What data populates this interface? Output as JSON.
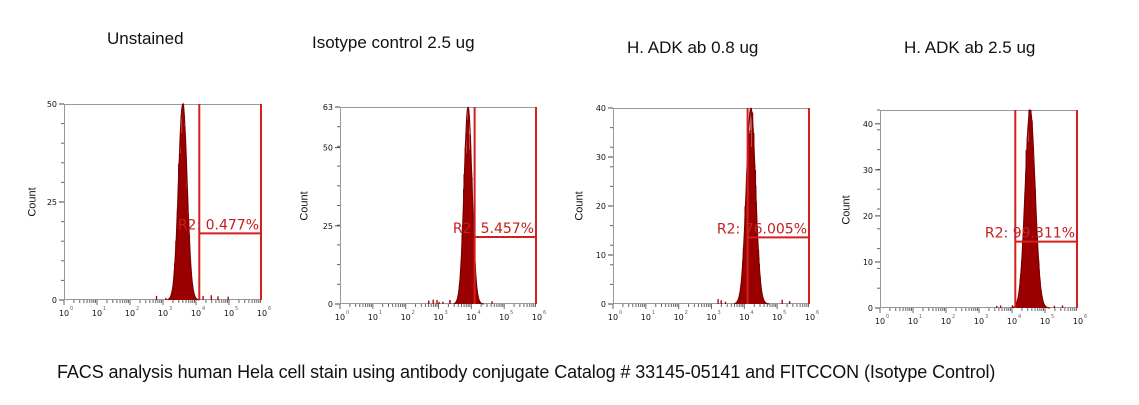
{
  "titles": [
    "Unstained",
    "Isotype control 2.5 ug",
    "H. ADK ab 0.8 ug",
    "H. ADK ab 2.5 ug"
  ],
  "caption": "FACS analysis human Hela cell stain using antibody conjugate Catalog # 33145-05141 and FITCCON (Isotype Control)",
  "colors": {
    "histogram": "#9b0000",
    "gate": "#d41f1f",
    "axis": "#999999"
  },
  "chart_data": [
    {
      "type": "histogram",
      "title": "Unstained",
      "xlabel": "",
      "ylabel": "Count",
      "xscale": "log",
      "xlim": [
        1,
        1000000
      ],
      "xticks": [
        "10^0",
        "10^1",
        "10^2",
        "10^3",
        "10^4",
        "10^5",
        "10^6"
      ],
      "ylim": [
        0,
        50
      ],
      "yticks": [
        0,
        25,
        50
      ],
      "peak": {
        "x_log10": 3.6,
        "count": 50,
        "sigma_log10": 0.13
      },
      "gate": {
        "name": "R2",
        "x_start_log10": 4.1,
        "x_end_log10": 6.0,
        "percent": "0.477%"
      },
      "annotation": "R2: 0.477%"
    },
    {
      "type": "histogram",
      "title": "Isotype control 2.5 ug",
      "xlabel": "",
      "ylabel": "Count",
      "xscale": "log",
      "xlim": [
        1,
        1000000
      ],
      "xticks": [
        "10^0",
        "10^1",
        "10^2",
        "10^3",
        "10^4",
        "10^5",
        "10^6"
      ],
      "ylim": [
        0,
        63
      ],
      "yticks": [
        0,
        25,
        50,
        63
      ],
      "peak": {
        "x_log10": 3.9,
        "count": 63,
        "sigma_log10": 0.12
      },
      "gate": {
        "name": "R2",
        "x_start_log10": 4.1,
        "x_end_log10": 6.0,
        "percent": "5.457%"
      },
      "annotation": "R2: 5.457%"
    },
    {
      "type": "histogram",
      "title": "H. ADK ab 0.8 ug",
      "xlabel": "",
      "ylabel": "Count",
      "xscale": "log",
      "xlim": [
        1,
        1000000
      ],
      "xticks": [
        "10^0",
        "10^1",
        "10^2",
        "10^3",
        "10^4",
        "10^5",
        "10^6"
      ],
      "ylim": [
        0,
        40
      ],
      "yticks": [
        0,
        10,
        20,
        30,
        40
      ],
      "peak": {
        "x_log10": 4.2,
        "count": 40,
        "sigma_log10": 0.14
      },
      "gate": {
        "name": "R2",
        "x_start_log10": 4.1,
        "x_end_log10": 6.0,
        "percent": "76.005%"
      },
      "annotation": "R2: 76.005%"
    },
    {
      "type": "histogram",
      "title": "H. ADK ab 2.5 ug",
      "xlabel": "",
      "ylabel": "Count",
      "xscale": "log",
      "xlim": [
        1,
        1000000
      ],
      "xticks": [
        "10^0",
        "10^1",
        "10^2",
        "10^3",
        "10^4",
        "10^5",
        "10^6"
      ],
      "ylim": [
        0,
        43
      ],
      "yticks": [
        0,
        10,
        20,
        30,
        40
      ],
      "peak": {
        "x_log10": 4.55,
        "count": 43,
        "sigma_log10": 0.15
      },
      "gate": {
        "name": "R2",
        "x_start_log10": 4.1,
        "x_end_log10": 6.0,
        "percent": "99.311%"
      },
      "annotation": "R2: 99.311%"
    }
  ]
}
